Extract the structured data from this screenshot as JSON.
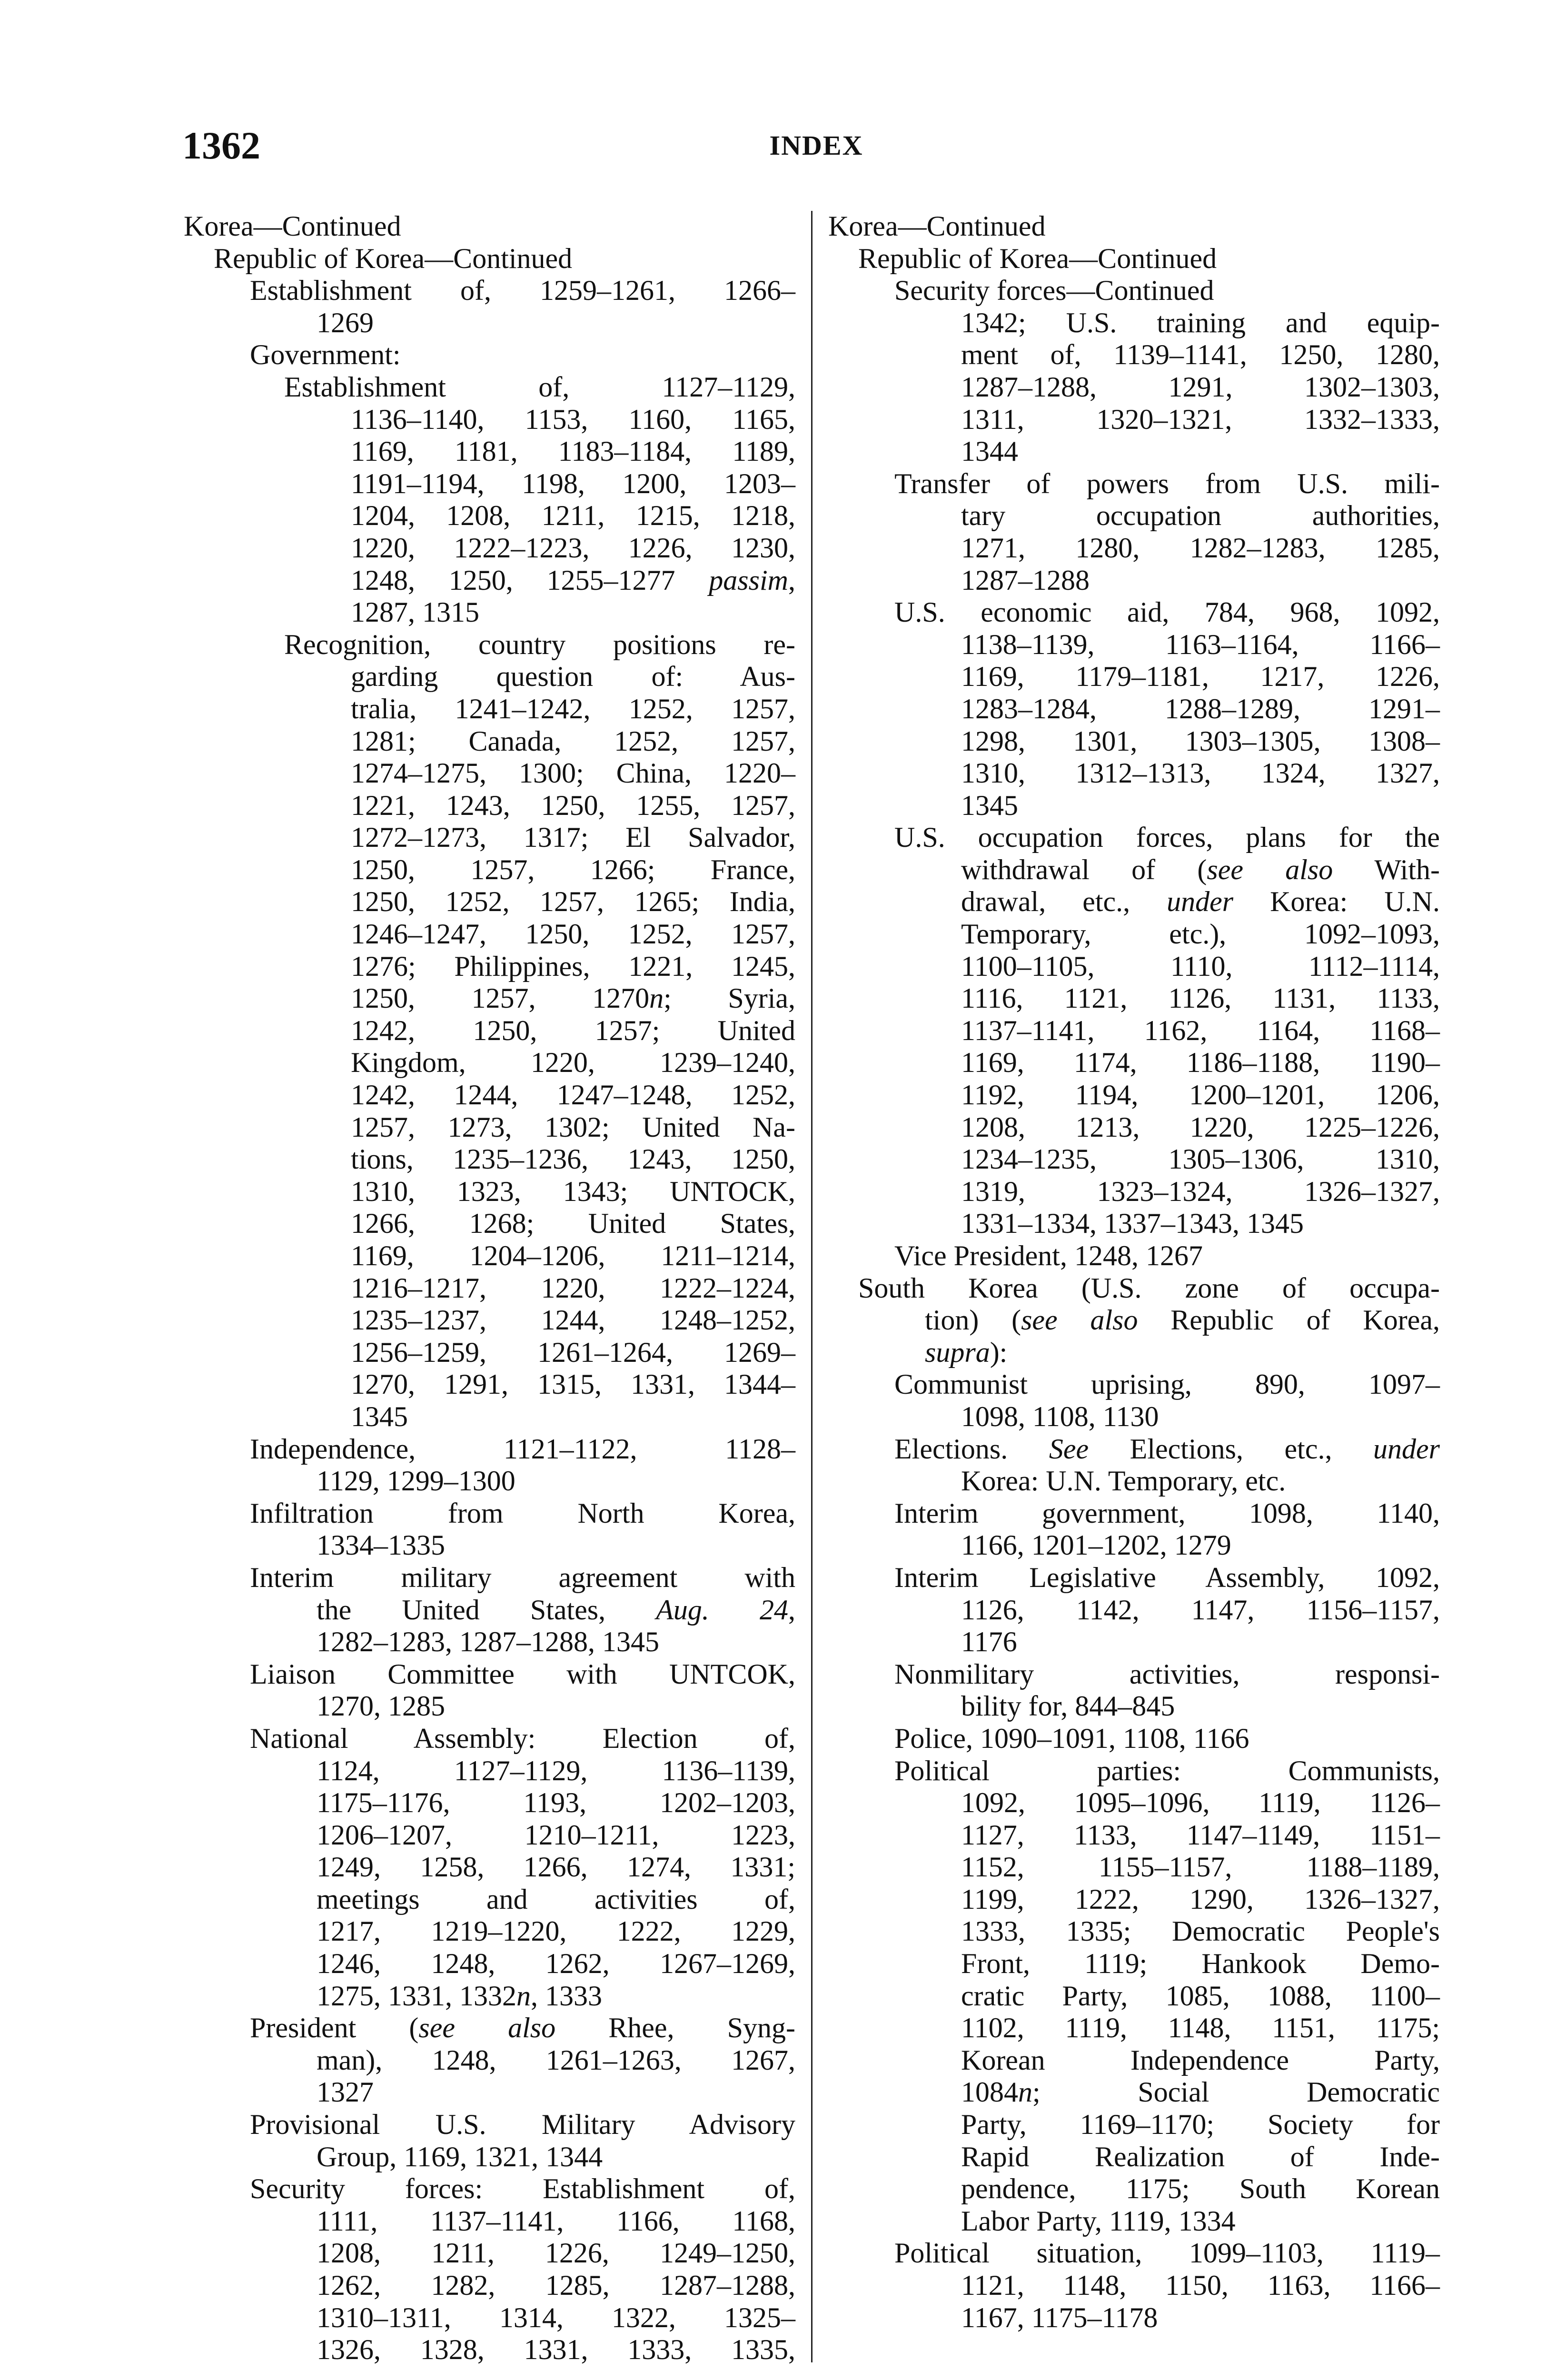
{
  "header": {
    "page_number": "1362",
    "running_head": "INDEX"
  },
  "columns": [
    {
      "entries": [
        {
          "level": 0,
          "lines": [
            "Korea—Continued"
          ]
        },
        {
          "level": 1,
          "lines": [
            "Republic of Korea—Continued"
          ]
        },
        {
          "level": 2,
          "lines": [
            "Establishment of, 1259–1261, 1266–",
            "1269"
          ]
        },
        {
          "level": 2,
          "lines": [
            "Government:"
          ]
        },
        {
          "level": 3,
          "lines": [
            "Establishment of, 1127–1129,",
            "1136–1140, 1153, 1160, 1165,",
            "1169, 1181, 1183–1184, 1189,",
            "1191–1194, 1198, 1200, 1203–",
            "1204, 1208, 1211, 1215, 1218,",
            "1220, 1222–1223, 1226, 1230,",
            "1248, 1250, 1255–1277 *passim*,",
            "1287, 1315"
          ]
        },
        {
          "level": 3,
          "lines": [
            "Recognition, country positions re-",
            "garding question of: Aus-",
            "tralia, 1241–1242, 1252, 1257,",
            "1281; Canada, 1252, 1257,",
            "1274–1275, 1300; China, 1220–",
            "1221, 1243, 1250, 1255, 1257,",
            "1272–1273, 1317; El Salvador,",
            "1250, 1257, 1266; France,",
            "1250, 1252, 1257, 1265; India,",
            "1246–1247, 1250, 1252, 1257,",
            "1276; Philippines, 1221, 1245,",
            "1250, 1257, 1270*n*; Syria,",
            "1242, 1250, 1257; United",
            "Kingdom, 1220, 1239–1240,",
            "1242, 1244, 1247–1248, 1252,",
            "1257, 1273, 1302; United Na-",
            "tions, 1235–1236, 1243, 1250,",
            "1310, 1323, 1343; UNTOCK,",
            "1266, 1268; United States,",
            "1169, 1204–1206, 1211–1214,",
            "1216–1217, 1220, 1222–1224,",
            "1235–1237, 1244, 1248–1252,",
            "1256–1259, 1261–1264, 1269–",
            "1270, 1291, 1315, 1331, 1344–",
            "1345"
          ]
        },
        {
          "level": 2,
          "lines": [
            "Independence, 1121–1122, 1128–",
            "1129, 1299–1300"
          ]
        },
        {
          "level": 2,
          "lines": [
            "Infiltration from North Korea,",
            "1334–1335"
          ]
        },
        {
          "level": 2,
          "lines": [
            "Interim military agreement with",
            "the United States, *Aug. 24*,",
            "1282–1283, 1287–1288, 1345"
          ]
        },
        {
          "level": 2,
          "lines": [
            "Liaison Committee with UNTCOK,",
            "1270, 1285"
          ]
        },
        {
          "level": 2,
          "lines": [
            "National Assembly: Election of,",
            "1124, 1127–1129, 1136–1139,",
            "1175–1176, 1193, 1202–1203,",
            "1206–1207, 1210–1211, 1223,",
            "1249, 1258, 1266, 1274, 1331;",
            "meetings and activities of,",
            "1217, 1219–1220, 1222, 1229,",
            "1246, 1248, 1262, 1267–1269,",
            "1275, 1331, 1332*n*, 1333"
          ]
        },
        {
          "level": 2,
          "lines": [
            "President (*see also* Rhee, Syng-",
            "man), 1248, 1261–1263, 1267,",
            "1327"
          ]
        },
        {
          "level": 2,
          "lines": [
            "Provisional U.S. Military Advisory",
            "Group, 1169, 1321, 1344"
          ]
        },
        {
          "level": 2,
          "open": true,
          "lines": [
            "Security forces: Establishment of,",
            "1111, 1137–1141, 1166, 1168,",
            "1208, 1211, 1226, 1249–1250,",
            "1262, 1282, 1285, 1287–1288,",
            "1310–1311, 1314, 1322, 1325–",
            "1326, 1328, 1331, 1333, 1335,"
          ]
        }
      ]
    },
    {
      "entries": [
        {
          "level": 0,
          "lines": [
            "Korea—Continued"
          ]
        },
        {
          "level": 1,
          "lines": [
            "Republic of Korea—Continued"
          ]
        },
        {
          "level": 2,
          "lines": [
            "Security forces—Continued"
          ]
        },
        {
          "level": 2,
          "cont_only": true,
          "lines": [
            "1342; U.S. training and equip-",
            "ment of, 1139–1141, 1250, 1280,",
            "1287–1288, 1291, 1302–1303,",
            "1311, 1320–1321, 1332–1333,",
            "1344"
          ]
        },
        {
          "level": 2,
          "lines": [
            "Transfer of powers from U.S. mili-",
            "tary occupation authorities,",
            "1271, 1280, 1282–1283, 1285,",
            "1287–1288"
          ]
        },
        {
          "level": 2,
          "lines": [
            "U.S. economic aid, 784, 968, 1092,",
            "1138–1139, 1163–1164, 1166–",
            "1169, 1179–1181, 1217, 1226,",
            "1283–1284, 1288–1289, 1291–",
            "1298, 1301, 1303–1305, 1308–",
            "1310, 1312–1313, 1324, 1327,",
            "1345"
          ]
        },
        {
          "level": 2,
          "lines": [
            "U.S. occupation forces, plans for the",
            "withdrawal of (*see also* With-",
            "drawal, etc., *under* Korea: U.N.",
            "Temporary, etc.), 1092–1093,",
            "1100–1105, 1110, 1112–1114,",
            "1116, 1121, 1126, 1131, 1133,",
            "1137–1141, 1162, 1164, 1168–",
            "1169, 1174, 1186–1188, 1190–",
            "1192, 1194, 1200–1201, 1206,",
            "1208, 1213, 1220, 1225–1226,",
            "1234–1235, 1305–1306, 1310,",
            "1319, 1323–1324, 1326–1327,",
            "1331–1334, 1337–1343, 1345"
          ]
        },
        {
          "level": 2,
          "lines": [
            "Vice President, 1248, 1267"
          ]
        },
        {
          "level": 1,
          "lines": [
            "South Korea (U.S. zone of occupa-",
            "tion) (*see also* Republic of Korea,",
            "*supra*):"
          ]
        },
        {
          "level": 2,
          "lines": [
            "Communist uprising, 890, 1097–",
            "1098, 1108, 1130"
          ]
        },
        {
          "level": 2,
          "lines": [
            "Elections. *See* Elections, etc., *under*",
            "Korea: U.N. Temporary, etc."
          ]
        },
        {
          "level": 2,
          "lines": [
            "Interim government, 1098, 1140,",
            "1166, 1201–1202, 1279"
          ]
        },
        {
          "level": 2,
          "lines": [
            "Interim Legislative Assembly, 1092,",
            "1126, 1142, 1147, 1156–1157,",
            "1176"
          ]
        },
        {
          "level": 2,
          "lines": [
            "Nonmilitary activities, responsi-",
            "bility for, 844–845"
          ]
        },
        {
          "level": 2,
          "lines": [
            "Police, 1090–1091, 1108, 1166"
          ]
        },
        {
          "level": 2,
          "lines": [
            "Political parties: Communists,",
            "1092, 1095–1096, 1119, 1126–",
            "1127, 1133, 1147–1149, 1151–",
            "1152, 1155–1157, 1188–1189,",
            "1199, 1222, 1290, 1326–1327,",
            "1333, 1335; Democratic People's",
            "Front, 1119; Hankook Demo-",
            "cratic Party, 1085, 1088, 1100–",
            "1102, 1119, 1148, 1151, 1175;",
            "Korean Independence Party,",
            "1084*n*; Social Democratic",
            "Party, 1169–1170; Society for",
            "Rapid Realization of Inde-",
            "pendence, 1175; South Korean",
            "Labor Party, 1119, 1334"
          ]
        },
        {
          "level": 2,
          "lines": [
            "Political situation, 1099–1103, 1119–",
            "1121, 1148, 1150, 1163, 1166–",
            "1167, 1175–1178"
          ]
        }
      ]
    }
  ]
}
